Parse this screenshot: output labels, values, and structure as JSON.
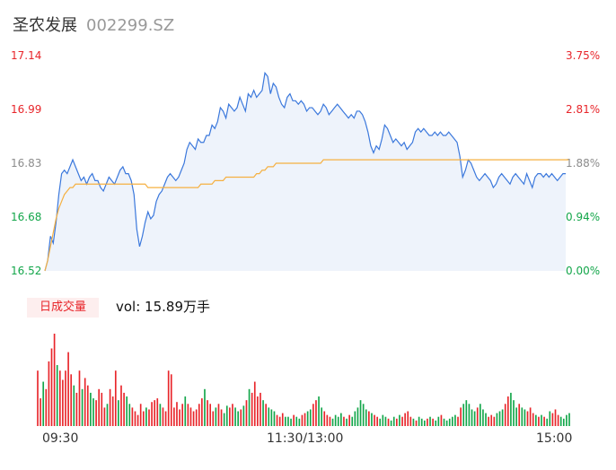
{
  "header": {
    "name": "圣农发展",
    "code": "002299.SZ"
  },
  "volume_panel": {
    "badge": "日成交量",
    "text": "vol: 15.89万手"
  },
  "colors": {
    "up": "#e8252a",
    "down": "#13a64a",
    "flat": "#8c8c8c",
    "price_line": "#3b78dc",
    "avg_line": "#f5b041"
  },
  "chart_data": [
    {
      "type": "line",
      "y_axis_left": [
        "17.14",
        "16.99",
        "16.83",
        "16.68",
        "16.52"
      ],
      "y_axis_right": [
        "3.75%",
        "2.81%",
        "1.88%",
        "0.94%",
        "0.00%"
      ],
      "x_ticks": [
        "09:30",
        "11:30/13:00",
        "15:00"
      ],
      "ylim": [
        16.52,
        17.14
      ],
      "sessions_minutes": 240,
      "series": [
        {
          "values": [
            16.52,
            16.55,
            16.62,
            16.6,
            16.66,
            16.74,
            16.8,
            16.81,
            16.8,
            16.82,
            16.84,
            16.82,
            16.8,
            16.78,
            16.79,
            16.77,
            16.79,
            16.8,
            16.78,
            16.78,
            16.76,
            16.75,
            16.77,
            16.79,
            16.78,
            16.77,
            16.79,
            16.81,
            16.82,
            16.8,
            16.8,
            16.78,
            16.74,
            16.64,
            16.59,
            16.62,
            16.66,
            16.69,
            16.67,
            16.68,
            16.72,
            16.74,
            16.75,
            16.77,
            16.79,
            16.8,
            16.79,
            16.78,
            16.79,
            16.81,
            16.83,
            16.87,
            16.89,
            16.88,
            16.87,
            16.9,
            16.89,
            16.89,
            16.91,
            16.91,
            16.94,
            16.93,
            16.95,
            16.99,
            16.98,
            16.96,
            17.0,
            16.99,
            16.98,
            16.99,
            17.02,
            17.0,
            16.98,
            17.03,
            17.02,
            17.04,
            17.02,
            17.03,
            17.04,
            17.09,
            17.08,
            17.03,
            17.06,
            17.05,
            17.02,
            17.0,
            16.99,
            17.02,
            17.03,
            17.01,
            17.01,
            17.0,
            17.01,
            17.0,
            16.98,
            16.99,
            16.99,
            16.98,
            16.97,
            16.98,
            17.0,
            16.99,
            16.97,
            16.98,
            16.99,
            17.0,
            16.99,
            16.98,
            16.97,
            16.96,
            16.97,
            16.96,
            16.98,
            16.98,
            16.97,
            16.95,
            16.92,
            16.88,
            16.86,
            16.88,
            16.87,
            16.9,
            16.94,
            16.93,
            16.91,
            16.89,
            16.9,
            16.89,
            16.88,
            16.89,
            16.87,
            16.88,
            16.89,
            16.92,
            16.93,
            16.92,
            16.93,
            16.92,
            16.91,
            16.91,
            16.92,
            16.91,
            16.92,
            16.91,
            16.91,
            16.92,
            16.91,
            16.9,
            16.89,
            16.85,
            16.79,
            16.81,
            16.84,
            16.83,
            16.81,
            16.79,
            16.78,
            16.79,
            16.8,
            16.79,
            16.78,
            16.76,
            16.77,
            16.79,
            16.8,
            16.79,
            16.78,
            16.77,
            16.79,
            16.8,
            16.79,
            16.78,
            16.77,
            16.8,
            16.78,
            16.76,
            16.79,
            16.8,
            16.8,
            16.79,
            16.8,
            16.79,
            16.8,
            16.79,
            16.78,
            16.79,
            16.8,
            16.8
          ]
        },
        {
          "values": [
            16.52,
            16.55,
            16.59,
            16.63,
            16.67,
            16.7,
            16.72,
            16.74,
            16.75,
            16.76,
            16.76,
            16.77,
            16.77,
            16.77,
            16.77,
            16.77,
            16.77,
            16.77,
            16.77,
            16.77,
            16.77,
            16.77,
            16.77,
            16.77,
            16.77,
            16.77,
            16.77,
            16.77,
            16.77,
            16.77,
            16.77,
            16.77,
            16.77,
            16.77,
            16.77,
            16.77,
            16.77,
            16.76,
            16.76,
            16.76,
            16.76,
            16.76,
            16.76,
            16.76,
            16.76,
            16.76,
            16.76,
            16.76,
            16.76,
            16.76,
            16.76,
            16.76,
            16.76,
            16.76,
            16.76,
            16.76,
            16.77,
            16.77,
            16.77,
            16.77,
            16.77,
            16.78,
            16.78,
            16.78,
            16.78,
            16.79,
            16.79,
            16.79,
            16.79,
            16.79,
            16.79,
            16.79,
            16.79,
            16.79,
            16.79,
            16.79,
            16.8,
            16.8,
            16.81,
            16.81,
            16.82,
            16.82,
            16.82,
            16.83,
            16.83,
            16.83,
            16.83,
            16.83,
            16.83,
            16.83,
            16.83,
            16.83,
            16.83,
            16.83,
            16.83,
            16.83,
            16.83,
            16.83,
            16.83,
            16.83,
            16.84,
            16.84,
            16.84,
            16.84,
            16.84,
            16.84,
            16.84,
            16.84,
            16.84,
            16.84,
            16.84,
            16.84,
            16.84,
            16.84,
            16.84,
            16.84,
            16.84,
            16.84,
            16.84,
            16.84,
            16.84,
            16.84,
            16.84,
            16.84,
            16.84,
            16.84,
            16.84,
            16.84,
            16.84,
            16.84,
            16.84,
            16.84,
            16.84,
            16.84,
            16.84,
            16.84,
            16.84,
            16.84,
            16.84,
            16.84,
            16.84,
            16.84,
            16.84,
            16.84,
            16.84,
            16.84,
            16.84,
            16.84,
            16.84,
            16.84,
            16.84,
            16.84,
            16.84,
            16.84,
            16.84,
            16.84,
            16.84,
            16.84,
            16.84,
            16.84,
            16.84,
            16.84,
            16.84,
            16.84,
            16.84,
            16.84,
            16.84,
            16.84,
            16.84,
            16.84,
            16.84,
            16.84,
            16.84,
            16.84,
            16.84,
            16.84,
            16.84,
            16.84,
            16.84,
            16.84,
            16.84,
            16.84,
            16.84,
            16.84,
            16.84,
            16.84,
            16.84,
            16.84,
            16.84
          ]
        },
        {
          "direction": [
            "u",
            "u",
            "d",
            "u",
            "u",
            "u",
            "u",
            "d",
            "u",
            "u",
            "u",
            "u",
            "u",
            "d",
            "u",
            "u",
            "d",
            "u",
            "u",
            "d",
            "d",
            "u",
            "u",
            "u",
            "u",
            "d",
            "u",
            "u",
            "u",
            "d",
            "u",
            "u",
            "d",
            "d",
            "u",
            "u",
            "u",
            "u",
            "u",
            "d",
            "u",
            "u",
            "u",
            "u",
            "d",
            "u",
            "u",
            "u",
            "u",
            "u",
            "u",
            "u",
            "u",
            "d",
            "u",
            "u",
            "u",
            "u",
            "u",
            "u",
            "d",
            "u",
            "u",
            "u",
            "d",
            "u",
            "u",
            "d",
            "d",
            "u",
            "u",
            "d",
            "d",
            "u",
            "d",
            "u",
            "d",
            "u",
            "u",
            "u",
            "u",
            "d",
            "u",
            "d",
            "d",
            "d",
            "u",
            "u",
            "u",
            "d",
            "d",
            "d",
            "u",
            "d",
            "d",
            "u",
            "u",
            "d",
            "d",
            "u",
            "u",
            "d",
            "d",
            "u",
            "u",
            "u",
            "d",
            "d",
            "d",
            "d",
            "u",
            "d",
            "u",
            "d",
            "d",
            "d",
            "d",
            "d",
            "d",
            "u",
            "d",
            "u",
            "u",
            "d",
            "d",
            "d",
            "u",
            "d",
            "d",
            "u",
            "d",
            "u",
            "u",
            "u",
            "u",
            "d",
            "u",
            "d",
            "d",
            "d",
            "u",
            "d",
            "u",
            "d",
            "d",
            "u",
            "d",
            "d",
            "d",
            "d",
            "d",
            "u",
            "u",
            "d",
            "d",
            "d",
            "d",
            "d",
            "u",
            "d",
            "d",
            "d",
            "u",
            "u",
            "u",
            "d",
            "d",
            "d",
            "u",
            "u",
            "d",
            "d",
            "d",
            "u",
            "d",
            "d",
            "u",
            "u",
            "u",
            "d",
            "u",
            "d",
            "u",
            "d",
            "d",
            "u",
            "u",
            "u"
          ],
          "values": [
            0.3,
            0.15,
            0.24,
            0.2,
            0.35,
            0.42,
            0.5,
            0.33,
            0.3,
            0.25,
            0.3,
            0.4,
            0.28,
            0.22,
            0.18,
            0.3,
            0.2,
            0.26,
            0.22,
            0.18,
            0.15,
            0.14,
            0.2,
            0.18,
            0.1,
            0.12,
            0.2,
            0.16,
            0.3,
            0.14,
            0.22,
            0.18,
            0.16,
            0.12,
            0.1,
            0.08,
            0.06,
            0.12,
            0.08,
            0.1,
            0.09,
            0.13,
            0.14,
            0.15,
            0.12,
            0.1,
            0.08,
            0.3,
            0.28,
            0.1,
            0.13,
            0.09,
            0.12,
            0.16,
            0.12,
            0.1,
            0.08,
            0.09,
            0.12,
            0.15,
            0.2,
            0.14,
            0.12,
            0.08,
            0.1,
            0.12,
            0.09,
            0.07,
            0.11,
            0.1,
            0.12,
            0.1,
            0.08,
            0.09,
            0.11,
            0.14,
            0.2,
            0.18,
            0.24,
            0.16,
            0.18,
            0.14,
            0.12,
            0.1,
            0.09,
            0.08,
            0.06,
            0.05,
            0.07,
            0.05,
            0.05,
            0.04,
            0.06,
            0.05,
            0.04,
            0.06,
            0.07,
            0.08,
            0.09,
            0.12,
            0.14,
            0.16,
            0.1,
            0.08,
            0.06,
            0.05,
            0.04,
            0.06,
            0.05,
            0.07,
            0.05,
            0.04,
            0.06,
            0.05,
            0.08,
            0.1,
            0.14,
            0.12,
            0.09,
            0.08,
            0.07,
            0.06,
            0.05,
            0.04,
            0.06,
            0.05,
            0.04,
            0.03,
            0.05,
            0.04,
            0.06,
            0.05,
            0.07,
            0.08,
            0.05,
            0.04,
            0.03,
            0.05,
            0.04,
            0.03,
            0.04,
            0.05,
            0.04,
            0.03,
            0.05,
            0.06,
            0.04,
            0.03,
            0.04,
            0.05,
            0.06,
            0.05,
            0.1,
            0.12,
            0.14,
            0.12,
            0.09,
            0.08,
            0.1,
            0.12,
            0.09,
            0.07,
            0.05,
            0.06,
            0.05,
            0.07,
            0.08,
            0.09,
            0.12,
            0.16,
            0.18,
            0.14,
            0.1,
            0.12,
            0.1,
            0.09,
            0.08,
            0.1,
            0.07,
            0.06,
            0.05,
            0.06,
            0.05,
            0.04,
            0.08,
            0.07,
            0.09,
            0.06,
            0.05,
            0.04,
            0.06,
            0.07
          ]
        }
      ]
    }
  ]
}
